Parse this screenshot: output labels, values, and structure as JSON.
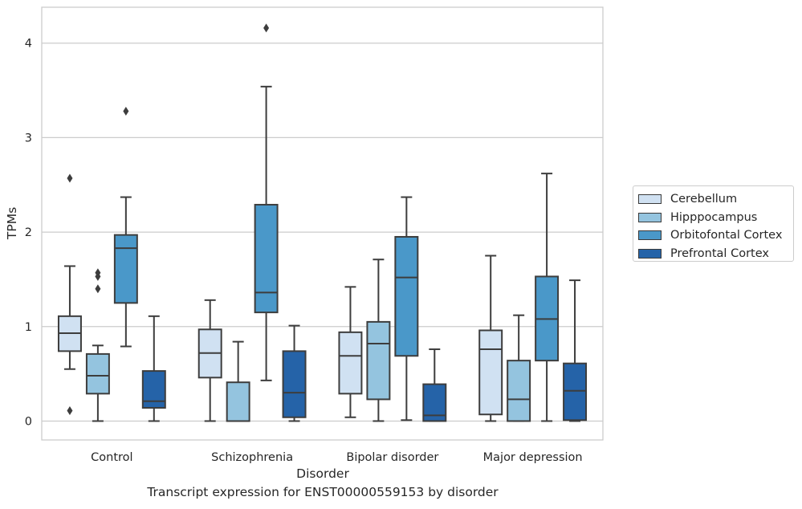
{
  "chart_data": {
    "type": "box",
    "title": "Transcript expression for ENST00000559153 by disorder",
    "xlabel": "Disorder",
    "ylabel": "TPMs",
    "ylim": [
      -0.2,
      4.38
    ],
    "yticks": [
      0,
      1,
      2,
      3,
      4
    ],
    "categories": [
      "Control",
      "Schizophrenia",
      "Bipolar disorder",
      "Major depression"
    ],
    "grid": true,
    "legend_position": "right",
    "series": [
      {
        "name": "Cerebellum",
        "color": "#d0e1f2",
        "boxes": [
          {
            "whislo": 0.55,
            "q1": 0.74,
            "med": 0.93,
            "q3": 1.11,
            "whishi": 1.64,
            "fliers": [
              2.57,
              0.11
            ]
          },
          {
            "whislo": 0.0,
            "q1": 0.46,
            "med": 0.72,
            "q3": 0.97,
            "whishi": 1.28,
            "fliers": []
          },
          {
            "whislo": 0.04,
            "q1": 0.29,
            "med": 0.69,
            "q3": 0.94,
            "whishi": 1.42,
            "fliers": []
          },
          {
            "whislo": 0.0,
            "q1": 0.07,
            "med": 0.76,
            "q3": 0.96,
            "whishi": 1.75,
            "fliers": []
          }
        ]
      },
      {
        "name": "Hipppocampus",
        "color": "#94c4df",
        "boxes": [
          {
            "whislo": 0.0,
            "q1": 0.29,
            "med": 0.48,
            "q3": 0.71,
            "whishi": 0.8,
            "fliers": [
              1.57,
              1.53,
              1.4
            ]
          },
          {
            "whislo": 0.0,
            "q1": 0.0,
            "med": 0.0,
            "q3": 0.41,
            "whishi": 0.84,
            "fliers": []
          },
          {
            "whislo": 0.0,
            "q1": 0.23,
            "med": 0.82,
            "q3": 1.05,
            "whishi": 1.71,
            "fliers": []
          },
          {
            "whislo": 0.0,
            "q1": 0.0,
            "med": 0.23,
            "q3": 0.64,
            "whishi": 1.12,
            "fliers": []
          }
        ]
      },
      {
        "name": "Orbitofontal Cortex",
        "color": "#4a98c9",
        "boxes": [
          {
            "whislo": 0.79,
            "q1": 1.25,
            "med": 1.83,
            "q3": 1.97,
            "whishi": 2.37,
            "fliers": [
              3.28
            ]
          },
          {
            "whislo": 0.43,
            "q1": 1.15,
            "med": 1.36,
            "q3": 2.29,
            "whishi": 3.54,
            "fliers": [
              4.16
            ]
          },
          {
            "whislo": 0.01,
            "q1": 0.69,
            "med": 1.52,
            "q3": 1.95,
            "whishi": 2.37,
            "fliers": []
          },
          {
            "whislo": 0.0,
            "q1": 0.64,
            "med": 1.08,
            "q3": 1.53,
            "whishi": 2.62,
            "fliers": []
          }
        ]
      },
      {
        "name": "Prefrontal Cortex",
        "color": "#2563a8",
        "boxes": [
          {
            "whislo": 0.0,
            "q1": 0.14,
            "med": 0.21,
            "q3": 0.53,
            "whishi": 1.11,
            "fliers": []
          },
          {
            "whislo": 0.0,
            "q1": 0.04,
            "med": 0.3,
            "q3": 0.74,
            "whishi": 1.01,
            "fliers": []
          },
          {
            "whislo": 0.0,
            "q1": 0.0,
            "med": 0.06,
            "q3": 0.39,
            "whishi": 0.76,
            "fliers": []
          },
          {
            "whislo": 0.0,
            "q1": 0.01,
            "med": 0.32,
            "q3": 0.61,
            "whishi": 1.49,
            "fliers": []
          }
        ]
      }
    ]
  }
}
